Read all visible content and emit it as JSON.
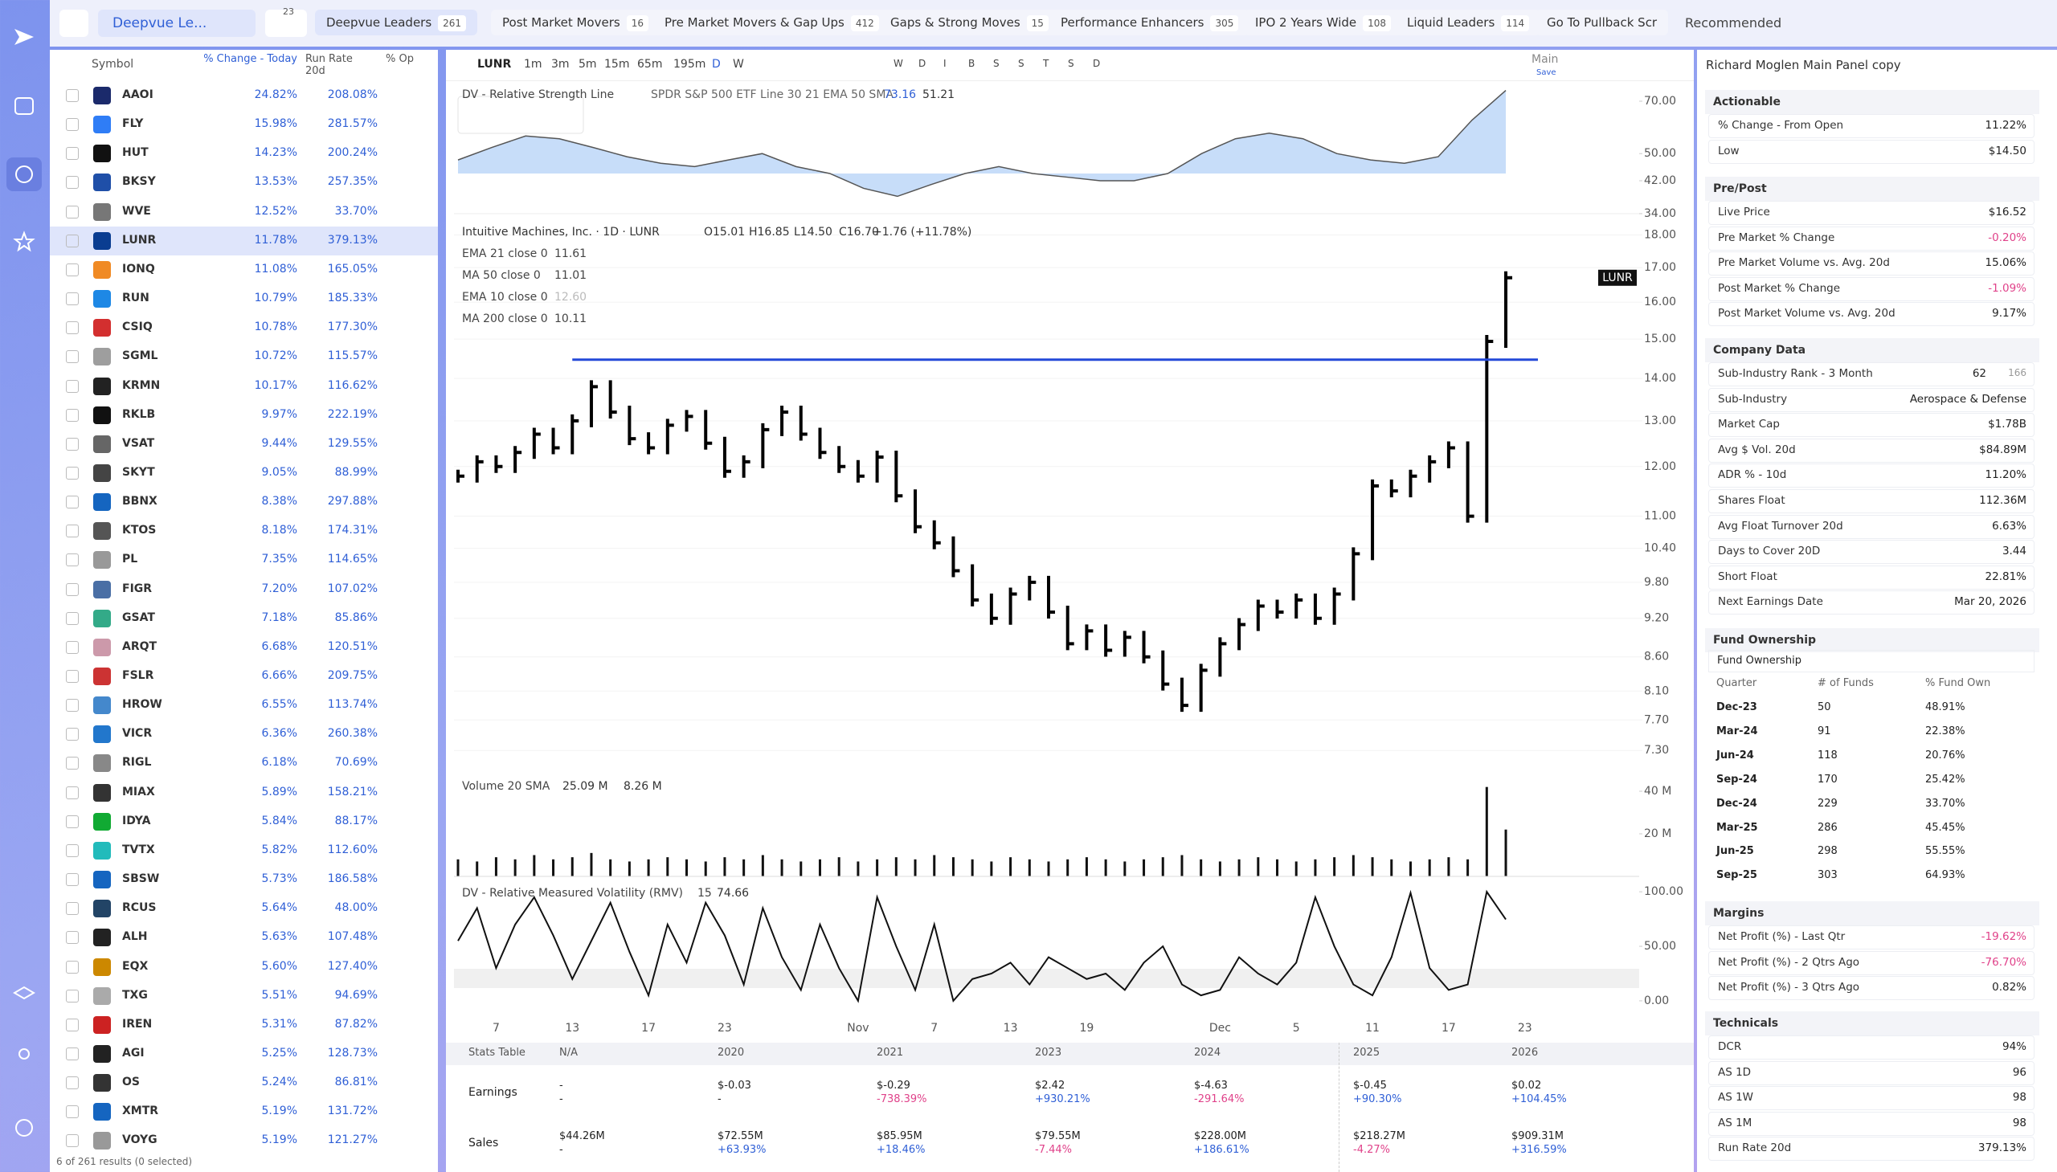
{
  "top_bar": {
    "search": "Deepvue Le...",
    "filter_count": "23",
    "sort": "Recommended",
    "tabs": [
      {
        "name": "Deepvue Leaders",
        "count": "261"
      },
      {
        "name": "Post Market Movers",
        "count": "16"
      },
      {
        "name": "Pre Market Movers & Gap Ups",
        "count": "412"
      },
      {
        "name": "Gaps & Strong Moves",
        "count": "15"
      },
      {
        "name": "Performance Enhancers",
        "count": "305"
      },
      {
        "name": "IPO 2 Years Wide",
        "count": "108"
      },
      {
        "name": "Liquid Leaders",
        "count": "114"
      },
      {
        "name": "Go To Pullback Scr",
        "count": null
      }
    ]
  },
  "watchlist": {
    "headers": [
      "Symbol",
      "% Change - Today",
      "Run Rate 20d",
      "% Op"
    ],
    "selected": 5,
    "rows": [
      [
        "AAOI",
        "24.82%",
        "208.08%"
      ],
      [
        "FLY",
        "15.98%",
        "281.57%"
      ],
      [
        "HUT",
        "14.23%",
        "200.24%"
      ],
      [
        "BKSY",
        "13.53%",
        "257.35%"
      ],
      [
        "WVE",
        "12.52%",
        "33.70%"
      ],
      [
        "LUNR",
        "11.78%",
        "379.13%"
      ],
      [
        "IONQ",
        "11.08%",
        "165.05%"
      ],
      [
        "RUN",
        "10.79%",
        "185.33%"
      ],
      [
        "CSIQ",
        "10.78%",
        "177.30%"
      ],
      [
        "SGML",
        "10.72%",
        "115.57%"
      ],
      [
        "KRMN",
        "10.17%",
        "116.62%"
      ],
      [
        "RKLB",
        "9.97%",
        "222.19%"
      ],
      [
        "VSAT",
        "9.44%",
        "129.55%"
      ],
      [
        "SKYT",
        "9.05%",
        "88.99%"
      ],
      [
        "BBNX",
        "8.38%",
        "297.88%"
      ],
      [
        "KTOS",
        "8.18%",
        "174.31%"
      ],
      [
        "PL",
        "7.35%",
        "114.65%"
      ],
      [
        "FIGR",
        "7.20%",
        "107.02%"
      ],
      [
        "GSAT",
        "7.18%",
        "85.86%"
      ],
      [
        "ARQT",
        "6.68%",
        "120.51%"
      ],
      [
        "FSLR",
        "6.66%",
        "209.75%"
      ],
      [
        "HROW",
        "6.55%",
        "113.74%"
      ],
      [
        "VICR",
        "6.36%",
        "260.38%"
      ],
      [
        "RIGL",
        "6.18%",
        "70.69%"
      ],
      [
        "MIAX",
        "5.89%",
        "158.21%"
      ],
      [
        "IDYA",
        "5.84%",
        "88.17%"
      ],
      [
        "TVTX",
        "5.82%",
        "112.60%"
      ],
      [
        "SBSW",
        "5.73%",
        "186.58%"
      ],
      [
        "RCUS",
        "5.64%",
        "48.00%"
      ],
      [
        "ALH",
        "5.63%",
        "107.48%"
      ],
      [
        "EQX",
        "5.60%",
        "127.40%"
      ],
      [
        "TXG",
        "5.51%",
        "94.69%"
      ],
      [
        "IREN",
        "5.31%",
        "87.82%"
      ],
      [
        "AGI",
        "5.25%",
        "128.73%"
      ],
      [
        "OS",
        "5.24%",
        "86.81%"
      ],
      [
        "XMTR",
        "5.19%",
        "131.72%"
      ],
      [
        "VOYG",
        "5.19%",
        "121.27%"
      ]
    ],
    "footer": "6 of 261 results (0 selected)"
  },
  "toolbar": {
    "symbol": "LUNR",
    "intervals": [
      "1m",
      "3m",
      "5m",
      "15m",
      "65m",
      "195m",
      "D",
      "W"
    ],
    "buttons": [
      "W",
      "D",
      "I",
      "B",
      "S",
      "S",
      "T",
      "S",
      "D"
    ],
    "layout": "Main",
    "save": "Save"
  },
  "chart": {
    "x_slots": 63,
    "x_labels": [
      {
        "label": "7",
        "index": 2
      },
      {
        "label": "13",
        "index": 6
      },
      {
        "label": "17",
        "index": 10
      },
      {
        "label": "23",
        "index": 14
      },
      {
        "label": "Nov",
        "index": 21
      },
      {
        "label": "7",
        "index": 25
      },
      {
        "label": "13",
        "index": 29
      },
      {
        "label": "19",
        "index": 33
      },
      {
        "label": "Dec",
        "index": 40
      },
      {
        "label": "5",
        "index": 44
      },
      {
        "label": "11",
        "index": 48
      },
      {
        "label": "17",
        "index": 52
      },
      {
        "label": "23",
        "index": 56
      }
    ],
    "rs_pane": {
      "title": "DV - Relative Strength Line",
      "subtitle": "SPDR S&P 500 ETF Line 30 21 EMA 50 SMA",
      "value1": "73.16",
      "value2": "51.21",
      "log": true,
      "ylim": [
        33.3,
        76.8
      ],
      "yticks": [
        {
          "value": 70,
          "label": "70.00"
        },
        {
          "value": 50,
          "label": "50.00"
        },
        {
          "value": 42,
          "label": "42.00"
        },
        {
          "value": 34,
          "label": "34.00"
        }
      ],
      "color": "#b9d4f7",
      "values": [
        48,
        52,
        56,
        55,
        52,
        49,
        47,
        46,
        48,
        50,
        46,
        44,
        40,
        38,
        41,
        44,
        46,
        44,
        43,
        42,
        42,
        44,
        50,
        55,
        57,
        55,
        50,
        48,
        47,
        49,
        62,
        75
      ]
    },
    "price_pane": {
      "title": "Intuitive Machines, Inc. · 1D · LUNR",
      "ohlc": [
        "O15.01",
        "H16.85",
        "L14.50",
        "C16.70"
      ],
      "change": "+1.76 (+11.78%)",
      "indicators": [
        [
          "EMA 21 close 0",
          "11.61"
        ],
        [
          "MA 50 close 0",
          "11.01"
        ],
        [
          "EMA 10 close 0",
          "12.60"
        ],
        [
          "MA 200 close 0",
          "10.11"
        ]
      ],
      "last_label": "LUNR",
      "level": 14.47,
      "log": true,
      "ylim": [
        7.09,
        18.37
      ],
      "yticks": [
        {
          "value": 18,
          "label": "18.00"
        },
        {
          "value": 17,
          "label": "17.00"
        },
        {
          "value": 16,
          "label": "16.00"
        },
        {
          "value": 15,
          "label": "15.00"
        },
        {
          "value": 14,
          "label": "14.00"
        },
        {
          "value": 13,
          "label": "13.00"
        },
        {
          "value": 12,
          "label": "12.00"
        },
        {
          "value": 11,
          "label": "11.00"
        },
        {
          "value": 10.4,
          "label": "10.40"
        },
        {
          "value": 9.8,
          "label": "9.80"
        },
        {
          "value": 9.2,
          "label": "9.20"
        },
        {
          "value": 8.6,
          "label": "8.60"
        },
        {
          "value": 8.1,
          "label": "8.10"
        },
        {
          "value": 7.7,
          "label": "7.70"
        },
        {
          "value": 7.3,
          "label": "7.30"
        }
      ],
      "closes": [
        11.8,
        12.1,
        12.0,
        12.3,
        12.7,
        12.4,
        13.0,
        13.8,
        13.2,
        12.6,
        12.4,
        12.9,
        13.1,
        12.5,
        11.9,
        12.1,
        12.8,
        13.2,
        12.7,
        12.3,
        12.0,
        11.8,
        12.2,
        11.4,
        10.8,
        10.5,
        10.0,
        9.5,
        9.2,
        9.6,
        9.8,
        9.3,
        8.8,
        9.0,
        8.7,
        8.9,
        8.6,
        8.2,
        7.9,
        8.4,
        8.8,
        9.1,
        9.4,
        9.3,
        9.5,
        9.2,
        9.6,
        10.3,
        11.6,
        11.5,
        11.8,
        12.1,
        12.4,
        11.0,
        14.94,
        16.7
      ]
    },
    "volume_pane": {
      "title": "Volume 20 SMA",
      "value1": "25.09 M",
      "value2": "8.26 M",
      "ylim": [
        0,
        44.9
      ],
      "yticks": [
        {
          "value": 40,
          "label": "40 M"
        },
        {
          "value": 20,
          "label": "20 M"
        }
      ],
      "values": [
        8,
        7,
        9,
        8,
        10,
        8,
        9,
        11,
        8,
        7,
        8,
        9,
        8,
        7,
        9,
        8,
        10,
        8,
        7,
        8,
        9,
        7,
        8,
        9,
        8,
        10,
        9,
        8,
        7,
        9,
        8,
        7,
        8,
        9,
        8,
        7,
        8,
        9,
        10,
        8,
        7,
        8,
        9,
        8,
        7,
        8,
        9,
        10,
        9,
        8,
        7,
        8,
        9,
        8,
        42,
        22
      ]
    },
    "rmv_pane": {
      "title": "DV - Relative Measured Volatility (RMV)",
      "length": "15",
      "value": "74.66",
      "ylim": [
        -3,
        106
      ],
      "yticks": [
        {
          "value": 100,
          "label": "100.00"
        },
        {
          "value": 50,
          "label": "50.00"
        },
        {
          "value": 0,
          "label": "0.00"
        }
      ],
      "values": [
        55,
        85,
        30,
        70,
        95,
        60,
        20,
        55,
        90,
        45,
        5,
        70,
        35,
        90,
        60,
        15,
        85,
        40,
        10,
        70,
        30,
        0,
        95,
        50,
        10,
        70,
        0,
        20,
        25,
        35,
        15,
        40,
        30,
        20,
        25,
        10,
        35,
        50,
        15,
        5,
        10,
        40,
        25,
        15,
        35,
        95,
        50,
        15,
        5,
        40,
        99,
        30,
        10,
        15,
        100,
        74.66
      ]
    }
  },
  "stats_table": {
    "headers": [
      "Stats Table",
      "N/A",
      "2020",
      "2021",
      "2023",
      "2024",
      "2025",
      "2026"
    ],
    "rows": [
      {
        "label": "Earnings",
        "cells": [
          [
            "-",
            "-"
          ],
          [
            "$-0.03",
            "-"
          ],
          [
            "$-0.29",
            "-738.39%"
          ],
          [
            "$2.42",
            "+930.21%"
          ],
          [
            "$-4.63",
            "-291.64%"
          ],
          [
            "$-0.45",
            "+90.30%"
          ],
          [
            "$0.02",
            "+104.45%"
          ]
        ]
      },
      {
        "label": "Sales",
        "cells": [
          [
            "$44.26M",
            "-"
          ],
          [
            "$72.55M",
            "+63.93%"
          ],
          [
            "$85.95M",
            "+18.46%"
          ],
          [
            "$79.55M",
            "-7.44%"
          ],
          [
            "$228.00M",
            "+186.61%"
          ],
          [
            "$218.27M",
            "-4.27%"
          ],
          [
            "$909.31M",
            "+316.59%"
          ]
        ]
      }
    ]
  },
  "side_panel": {
    "title": "Richard Moglen Main Panel copy",
    "sections": [
      {
        "title": "Actionable",
        "rows": [
          [
            "% Change - From Open",
            "11.22%"
          ],
          [
            "Low",
            "$14.50"
          ]
        ]
      },
      {
        "title": "Pre/Post",
        "rows": [
          [
            "Live Price",
            "$16.52"
          ],
          [
            "Pre Market % Change",
            "-0.20%"
          ],
          [
            "Pre Market Volume vs. Avg. 20d",
            "15.06%"
          ],
          [
            "Post Market % Change",
            "-1.09%"
          ],
          [
            "Post Market Volume vs. Avg. 20d",
            "9.17%"
          ]
        ]
      },
      {
        "title": "Company Data",
        "rows": [
          [
            "Sub-Industry Rank - 3 Month",
            "62",
            "166"
          ],
          [
            "Sub-Industry",
            "Aerospace & Defense"
          ],
          [
            "Market Cap",
            "$1.78B"
          ],
          [
            "Avg $ Vol. 20d",
            "$84.89M"
          ],
          [
            "ADR % - 10d",
            "11.20%"
          ],
          [
            "Shares Float",
            "112.36M"
          ],
          [
            "Avg Float Turnover 20d",
            "6.63%"
          ],
          [
            "Days to Cover 20D",
            "3.44"
          ],
          [
            "Short Float",
            "22.81%"
          ],
          [
            "Next Earnings Date",
            "Mar 20, 2026"
          ]
        ]
      },
      {
        "title": "Fund Ownership",
        "subtitle": "Fund Ownership",
        "columns": [
          "Quarter",
          "# of Funds",
          "% Fund Own"
        ],
        "rows": [
          [
            "Dec-23",
            "50",
            "48.91%"
          ],
          [
            "Mar-24",
            "91",
            "22.38%"
          ],
          [
            "Jun-24",
            "118",
            "20.76%"
          ],
          [
            "Sep-24",
            "170",
            "25.42%"
          ],
          [
            "Dec-24",
            "229",
            "33.70%"
          ],
          [
            "Mar-25",
            "286",
            "45.45%"
          ],
          [
            "Jun-25",
            "298",
            "55.55%"
          ],
          [
            "Sep-25",
            "303",
            "64.93%"
          ]
        ]
      },
      {
        "title": "Margins",
        "rows": [
          [
            "Net Profit (%) - Last Qtr",
            "-19.62%"
          ],
          [
            "Net Profit (%) - 2 Qtrs Ago",
            "-76.70%"
          ],
          [
            "Net Profit (%) - 3 Qtrs Ago",
            "0.82%"
          ]
        ]
      },
      {
        "title": "Technicals",
        "rows": [
          [
            "DCR",
            "94%"
          ],
          [
            "AS 1D",
            "96"
          ],
          [
            "AS 1W",
            "98"
          ],
          [
            "AS 1M",
            "98"
          ],
          [
            "Run Rate 20d",
            "379.13%"
          ]
        ]
      }
    ]
  }
}
